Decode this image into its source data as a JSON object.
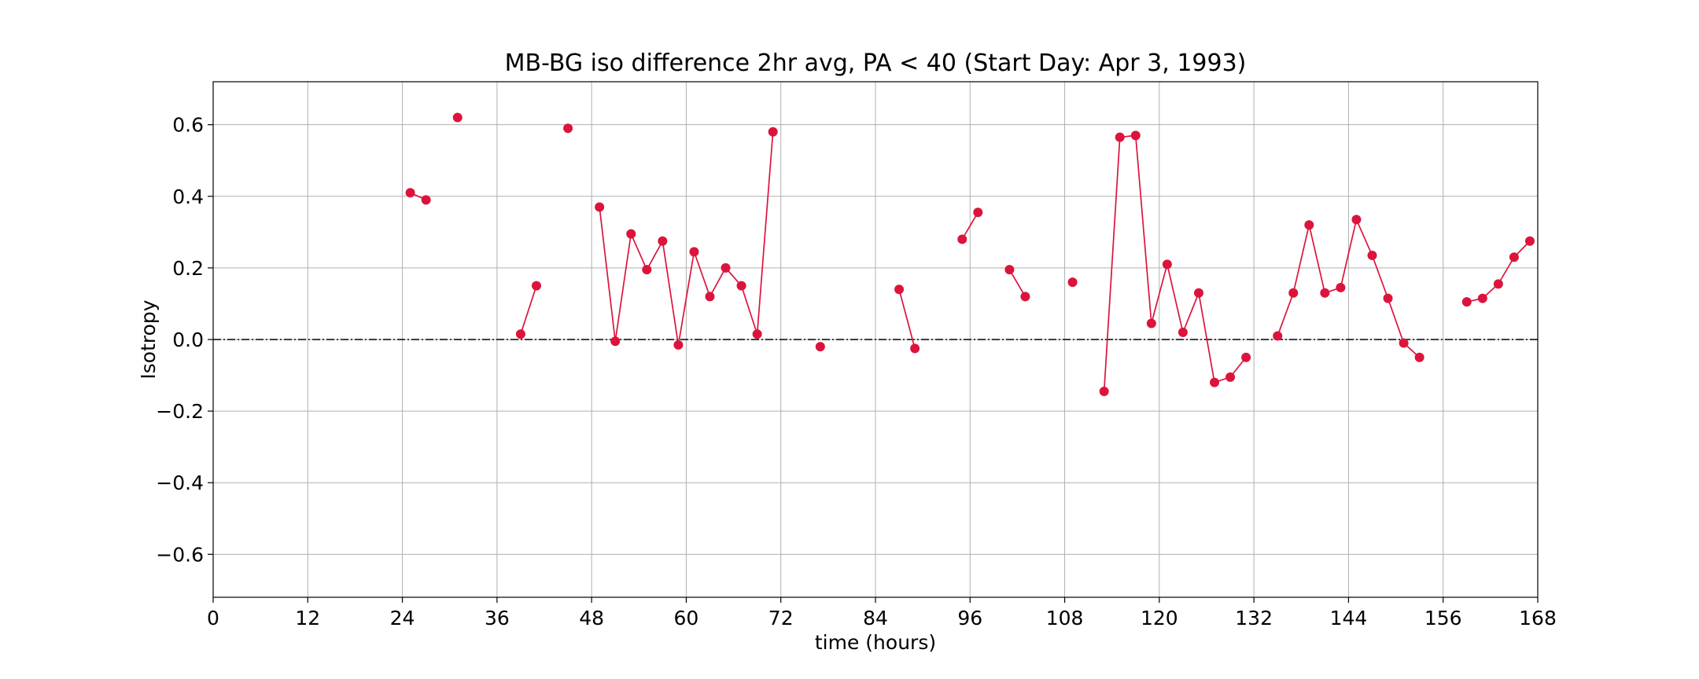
{
  "chart_data": {
    "type": "line",
    "title": "MB-BG iso difference 2hr avg, PA < 40 (Start Day: Apr 3, 1993)",
    "xlabel": "time (hours)",
    "ylabel": "Isotropy",
    "xlim": [
      0,
      168
    ],
    "ylim": [
      -0.72,
      0.72
    ],
    "xticks": [
      0,
      12,
      24,
      36,
      48,
      60,
      72,
      84,
      96,
      108,
      120,
      132,
      144,
      156,
      168
    ],
    "yticks": [
      -0.6,
      -0.4,
      -0.2,
      0.0,
      0.2,
      0.4,
      0.6
    ],
    "ytick_labels": [
      "−0.6",
      "−0.4",
      "−0.2",
      "0.0",
      "0.2",
      "0.4",
      "0.6"
    ],
    "grid": true,
    "reference_line": {
      "y": 0.0,
      "style": "dash-dot",
      "color": "#000000"
    },
    "series": [
      {
        "color": "#dc143c",
        "marker": "circle",
        "segments": [
          [
            [
              25,
              0.41
            ],
            [
              27,
              0.39
            ]
          ],
          [
            [
              31,
              0.62
            ]
          ],
          [
            [
              39,
              0.015
            ],
            [
              41,
              0.15
            ]
          ],
          [
            [
              45,
              0.59
            ]
          ],
          [
            [
              49,
              0.37
            ],
            [
              51,
              -0.005
            ],
            [
              53,
              0.295
            ],
            [
              55,
              0.195
            ],
            [
              57,
              0.275
            ],
            [
              59,
              -0.015
            ],
            [
              61,
              0.245
            ],
            [
              63,
              0.12
            ],
            [
              65,
              0.2
            ],
            [
              67,
              0.15
            ],
            [
              69,
              0.015
            ],
            [
              71,
              0.58
            ]
          ],
          [
            [
              77,
              -0.02
            ]
          ],
          [
            [
              87,
              0.14
            ],
            [
              89,
              -0.025
            ]
          ],
          [
            [
              95,
              0.28
            ],
            [
              97,
              0.355
            ]
          ],
          [
            [
              101,
              0.195
            ],
            [
              103,
              0.12
            ]
          ],
          [
            [
              109,
              0.16
            ]
          ],
          [
            [
              113,
              -0.145
            ],
            [
              115,
              0.565
            ],
            [
              117,
              0.57
            ],
            [
              119,
              0.045
            ],
            [
              121,
              0.21
            ],
            [
              123,
              0.02
            ],
            [
              125,
              0.13
            ],
            [
              127,
              -0.12
            ],
            [
              129,
              -0.105
            ],
            [
              131,
              -0.05
            ]
          ],
          [
            [
              135,
              0.01
            ],
            [
              137,
              0.13
            ],
            [
              139,
              0.32
            ],
            [
              141,
              0.13
            ],
            [
              143,
              0.145
            ],
            [
              145,
              0.335
            ],
            [
              147,
              0.235
            ],
            [
              149,
              0.115
            ],
            [
              151,
              -0.01
            ],
            [
              153,
              -0.05
            ]
          ],
          [
            [
              159,
              0.105
            ],
            [
              161,
              0.115
            ],
            [
              163,
              0.155
            ],
            [
              165,
              0.23
            ],
            [
              167,
              0.275
            ]
          ]
        ]
      }
    ]
  }
}
